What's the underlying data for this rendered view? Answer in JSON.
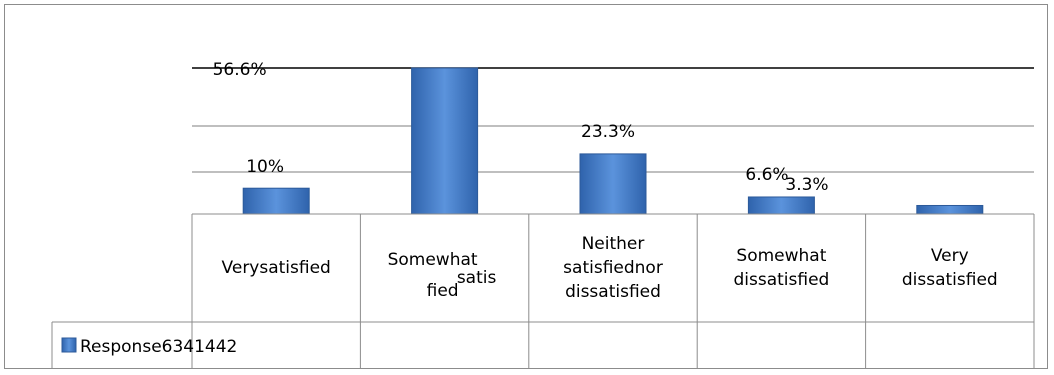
{
  "chart_data": {
    "type": "bar",
    "categories": [
      "Very satisfied",
      "Somewhat satisfied",
      "Neither satisfied nor dissatisfied",
      "Somewhat dissatisfied",
      "Very dissatisfied"
    ],
    "category_lines": [
      [
        "Verysatisfied"
      ],
      [
        "Somewhat",
        "satis",
        "fied"
      ],
      [
        "Neither",
        "satisfiednor",
        "dissatisfied"
      ],
      [
        "Somewhat",
        "dissatisfied"
      ],
      [
        "Very",
        "dissatisfied"
      ]
    ],
    "series": [
      {
        "name": "Response",
        "values": [
          10,
          56.6,
          23.3,
          6.6,
          3.3
        ]
      }
    ],
    "data_labels": [
      "10%",
      "56.6%",
      "23.3%",
      "6.6%",
      "3.3%"
    ],
    "table_row": {
      "legend_label": "Response",
      "values_text": "6341442"
    },
    "ylim": [
      0,
      60
    ],
    "grid": true,
    "legend_position": "bottom-table",
    "colors": {
      "bar": "#4a7fc8",
      "bar_edge": "#2c5a9a",
      "grid": "#7f7f7f",
      "border": "#8c8c8c"
    }
  }
}
